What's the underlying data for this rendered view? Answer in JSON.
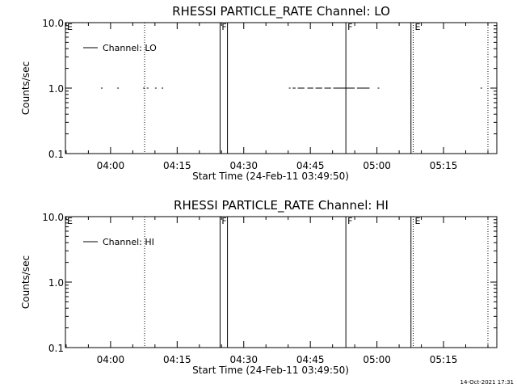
{
  "footer": {
    "generated_on": "14-Oct-2021 17:31"
  },
  "chart_data": [
    {
      "type": "scatter",
      "title": "RHESSI PARTICLE_RATE Channel: LO",
      "xlabel": "Start Time (24-Feb-11 03:49:50)",
      "ylabel": "Counts/sec",
      "y_scale": "log",
      "xlim": [
        "03:49:50",
        "05:27:00"
      ],
      "ylim": [
        0.1,
        10.0
      ],
      "x_ticks": [
        "04:00",
        "04:15",
        "04:30",
        "04:45",
        "05:00",
        "05:15"
      ],
      "y_ticks": [
        "0.1",
        "1.0",
        "10.0"
      ],
      "legend": {
        "placement": "top-left",
        "entries": [
          "Channel: LO"
        ]
      },
      "series": [
        {
          "name": "Channel: LO",
          "segments": [
            [
              "03:57:50",
              "03:58:05"
            ],
            [
              "04:01:30",
              "04:01:45"
            ],
            [
              "04:07:20",
              "04:07:35"
            ],
            [
              "04:08:10",
              "04:08:30"
            ],
            [
              "04:10:00",
              "04:10:15"
            ],
            [
              "04:11:30",
              "04:11:45"
            ],
            [
              "04:40:10",
              "04:40:25"
            ],
            [
              "04:41:00",
              "04:41:40"
            ],
            [
              "04:42:10",
              "04:43:40"
            ],
            [
              "04:44:20",
              "04:45:40"
            ],
            [
              "04:46:10",
              "04:47:40"
            ],
            [
              "04:48:10",
              "04:49:40"
            ],
            [
              "04:50:10",
              "04:55:00"
            ],
            [
              "04:55:30",
              "04:58:20"
            ],
            [
              "05:00:10",
              "05:00:25"
            ],
            [
              "05:23:20",
              "05:23:35"
            ]
          ],
          "y": 1.0
        }
      ],
      "markers": [
        {
          "time": "03:49:50",
          "style": "solid",
          "label": "E"
        },
        {
          "time": "04:07:40",
          "style": "dotted",
          "label": ""
        },
        {
          "time": "04:24:40",
          "style": "solid",
          "label": "F"
        },
        {
          "time": "04:26:20",
          "style": "solid",
          "label": ""
        },
        {
          "time": "04:53:00",
          "style": "solid",
          "label": "F"
        },
        {
          "time": "05:07:40",
          "style": "solid",
          "label": ""
        },
        {
          "time": "05:08:10",
          "style": "dotted",
          "label": "E"
        },
        {
          "time": "05:25:00",
          "style": "dotted",
          "label": ""
        }
      ]
    },
    {
      "type": "scatter",
      "title": "RHESSI PARTICLE_RATE Channel: HI",
      "xlabel": "Start Time (24-Feb-11 03:49:50)",
      "ylabel": "Counts/sec",
      "y_scale": "log",
      "xlim": [
        "03:49:50",
        "05:27:00"
      ],
      "ylim": [
        0.1,
        10.0
      ],
      "x_ticks": [
        "04:00",
        "04:15",
        "04:30",
        "04:45",
        "05:00",
        "05:15"
      ],
      "y_ticks": [
        "0.1",
        "1.0",
        "10.0"
      ],
      "legend": {
        "placement": "top-left",
        "entries": [
          "Channel: HI"
        ]
      },
      "series": [
        {
          "name": "Channel: HI",
          "segments": [],
          "y": 1.0
        }
      ],
      "markers": [
        {
          "time": "03:49:50",
          "style": "solid",
          "label": "E"
        },
        {
          "time": "04:07:40",
          "style": "dotted",
          "label": ""
        },
        {
          "time": "04:24:40",
          "style": "solid",
          "label": "F"
        },
        {
          "time": "04:26:20",
          "style": "solid",
          "label": ""
        },
        {
          "time": "04:53:00",
          "style": "solid",
          "label": "F"
        },
        {
          "time": "05:07:40",
          "style": "solid",
          "label": ""
        },
        {
          "time": "05:08:10",
          "style": "dotted",
          "label": "E"
        },
        {
          "time": "05:25:00",
          "style": "dotted",
          "label": ""
        }
      ]
    }
  ]
}
